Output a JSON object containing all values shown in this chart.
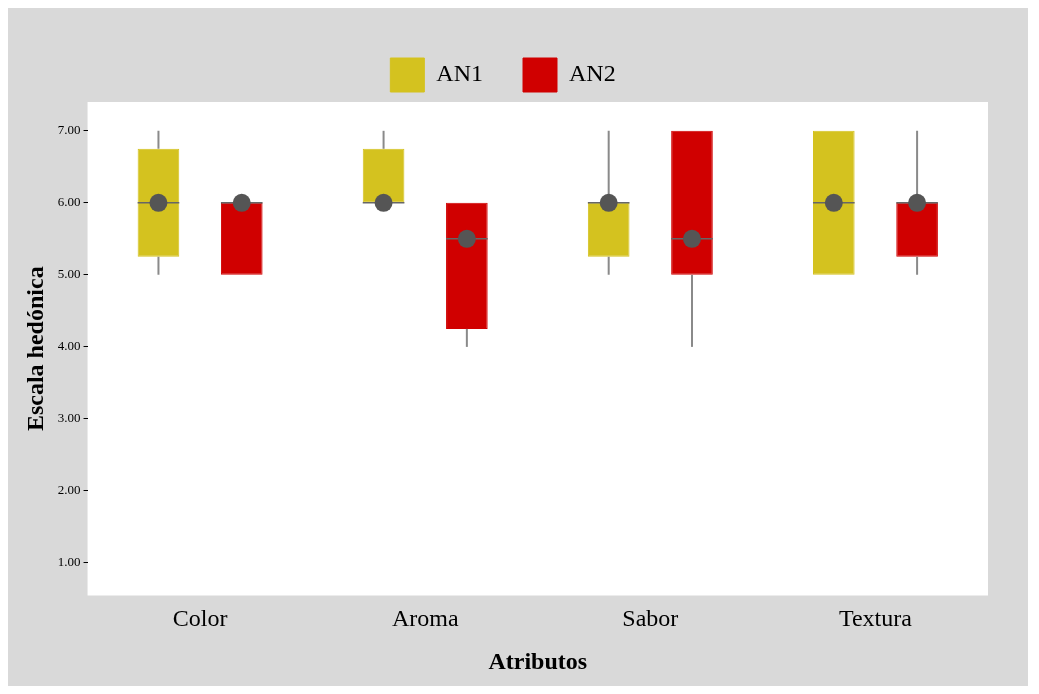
{
  "chart_data": {
    "type": "box",
    "xlabel": "Atributos",
    "ylabel": "Escala hedónica",
    "categories": [
      "Color",
      "Aroma",
      "Sabor",
      "Textura"
    ],
    "ylim": [
      0.55,
      7.4
    ],
    "yticks": [
      {
        "value": 1,
        "label": "1.00"
      },
      {
        "value": 2,
        "label": "2.00"
      },
      {
        "value": 3,
        "label": "3.00"
      },
      {
        "value": 4,
        "label": "4.00"
      },
      {
        "value": 5,
        "label": "5.00"
      },
      {
        "value": 6,
        "label": "6.00"
      },
      {
        "value": 7,
        "label": "7.00"
      }
    ],
    "grid": false,
    "legend": "top",
    "series": [
      {
        "name": "AN1",
        "color": "#d4c21f",
        "boxes": [
          {
            "low": 5,
            "q1": 5.25,
            "median": 6,
            "q3": 6.75,
            "high": 7,
            "mean": 6
          },
          {
            "low": 6,
            "q1": 6,
            "median": 6,
            "q3": 6.75,
            "high": 7,
            "mean": 6
          },
          {
            "low": 5,
            "q1": 5.25,
            "median": 6,
            "q3": 6,
            "high": 7,
            "mean": 6
          },
          {
            "low": 5,
            "q1": 5,
            "median": 6,
            "q3": 7,
            "high": 7,
            "mean": 6
          }
        ]
      },
      {
        "name": "AN2",
        "color": "#d00000",
        "boxes": [
          {
            "low": 5,
            "q1": 5,
            "median": 6,
            "q3": 6,
            "high": 6,
            "mean": 6
          },
          {
            "low": 4,
            "q1": 4.25,
            "median": 5.5,
            "q3": 6,
            "high": 6,
            "mean": 5.5
          },
          {
            "low": 4,
            "q1": 5,
            "median": 5.5,
            "q3": 7,
            "high": 7,
            "mean": 5.5
          },
          {
            "low": 5,
            "q1": 5.25,
            "median": 6,
            "q3": 6,
            "high": 7,
            "mean": 6
          }
        ]
      }
    ]
  }
}
